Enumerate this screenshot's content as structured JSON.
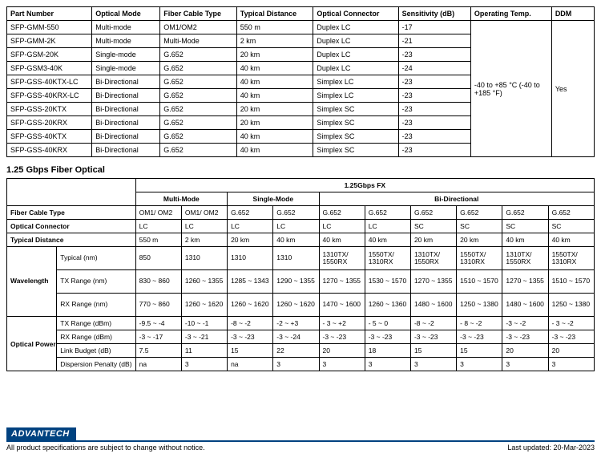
{
  "table1": {
    "headers": [
      "Part Number",
      "Optical Mode",
      "Fiber Cable Type",
      "Typical Distance",
      "Optical Connector",
      "Sensitivity (dB)",
      "Operating Temp.",
      "DDM"
    ],
    "rows": [
      [
        "SFP-GMM-550",
        "Multi-mode",
        "OM1/OM2",
        "550 m",
        "Duplex LC",
        "-17"
      ],
      [
        "SFP-GMM-2K",
        "Multi-mode",
        "Multi-Mode",
        "2 km",
        "Duplex LC",
        "-21"
      ],
      [
        "SFP-GSM-20K",
        "Single-mode",
        "G.652",
        "20 km",
        "Duplex LC",
        "-23"
      ],
      [
        "SFP-GSM3-40K",
        "Single-mode",
        "G.652",
        "40 km",
        "Duplex LC",
        "-24"
      ],
      [
        "SFP-GSS-40KTX-LC",
        "Bi-Directional",
        "G.652",
        "40 km",
        "Simplex LC",
        "-23"
      ],
      [
        "SFP-GSS-40KRX-LC",
        "Bi-Directional",
        "G.652",
        "40 km",
        "Simplex LC",
        "-23"
      ],
      [
        "SFP-GSS-20KTX",
        "Bi-Directional",
        "G.652",
        "20 km",
        "Simplex SC",
        "-23"
      ],
      [
        "SFP-GSS-20KRX",
        "Bi-Directional",
        "G.652",
        "20 km",
        "Simplex SC",
        "-23"
      ],
      [
        "SFP-GSS-40KTX",
        "Bi-Directional",
        "G.652",
        "40 km",
        "Simplex SC",
        "-23"
      ],
      [
        "SFP-GSS-40KRX",
        "Bi-Directional",
        "G.652",
        "40 km",
        "Simplex SC",
        "-23"
      ]
    ],
    "op_temp": "-40 to +85 °C\n(-40 to +185 °F)",
    "ddm": "Yes"
  },
  "section_title": "1.25 Gbps Fiber Optical",
  "table2": {
    "super_header": "1.25Gbps FX",
    "mode_headers": [
      "Multi-Mode",
      "Single-Mode",
      "Bi-Directional"
    ],
    "row_labels": {
      "fiber": "Fiber Cable Type",
      "conn": "Optical Connector",
      "dist": "Typical Distance",
      "wave": "Wavelength",
      "wave_typ": "Typical (nm)",
      "wave_tx": "TX Range (nm)",
      "wave_rx": "RX Range (nm)",
      "opt": "Optical Power",
      "opt_tx": "TX Range (dBm)",
      "opt_rx": "RX Range (dBm)",
      "opt_lb": "Link Budget (dB)",
      "opt_dp": "Dispersion Penalty (dB)"
    },
    "cols": {
      "fiber": [
        "OM1/ OM2",
        "OM1/ OM2",
        "G.652",
        "G.652",
        "G.652",
        "G.652",
        "G.652",
        "G.652",
        "G.652",
        "G.652"
      ],
      "conn": [
        "LC",
        "LC",
        "LC",
        "LC",
        "LC",
        "LC",
        "SC",
        "SC",
        "SC",
        "SC"
      ],
      "dist": [
        "550 m",
        "2 km",
        "20 km",
        "40 km",
        "40 km",
        "40 km",
        "20 km",
        "20 km",
        "40 km",
        "40 km"
      ],
      "wave_typ": [
        "850",
        "1310",
        "1310",
        "1310",
        "1310TX/ 1550RX",
        "1550TX/ 1310RX",
        "1310TX/ 1550RX",
        "1550TX/ 1310RX",
        "1310TX/ 1550RX",
        "1550TX/ 1310RX"
      ],
      "wave_tx": [
        "830 ~ 860",
        "1260 ~ 1355",
        "1285 ~ 1343",
        "1290 ~ 1355",
        "1270 ~ 1355",
        "1530 ~ 1570",
        "1270 ~ 1355",
        "1510 ~ 1570",
        "1270 ~ 1355",
        "1510 ~ 1570"
      ],
      "wave_rx": [
        "770 ~ 860",
        "1260 ~ 1620",
        "1260 ~ 1620",
        "1260 ~ 1620",
        "1470 ~ 1600",
        "1260 ~ 1360",
        "1480 ~ 1600",
        "1250 ~ 1380",
        "1480 ~ 1600",
        "1250 ~ 1380"
      ],
      "opt_tx": [
        "-9.5 ~ -4",
        "-10 ~ -1",
        "-8 ~ -2",
        "-2 ~ +3",
        "- 3 ~ +2",
        "- 5 ~ 0",
        "-8 ~ -2",
        "- 8 ~ -2",
        "-3 ~ -2",
        "- 3 ~ -2"
      ],
      "opt_rx": [
        "-3 ~ -17",
        "-3 ~ -21",
        "-3 ~ -23",
        "-3 ~ -24",
        "-3 ~ -23",
        "-3 ~ -23",
        "-3 ~ -23",
        "-3 ~ -23",
        "-3 ~ -23",
        "-3 ~ -23"
      ],
      "opt_lb": [
        "7.5",
        "11",
        "15",
        "22",
        "20",
        "18",
        "15",
        "15",
        "20",
        "20"
      ],
      "opt_dp": [
        "na",
        "3",
        "na",
        "3",
        "3",
        "3",
        "3",
        "3",
        "3",
        "3"
      ]
    }
  },
  "footer": {
    "brand": "ADVANTECH",
    "left": "All product specifications are subject to change without notice.",
    "right": "Last updated: 20-Mar-2023"
  }
}
